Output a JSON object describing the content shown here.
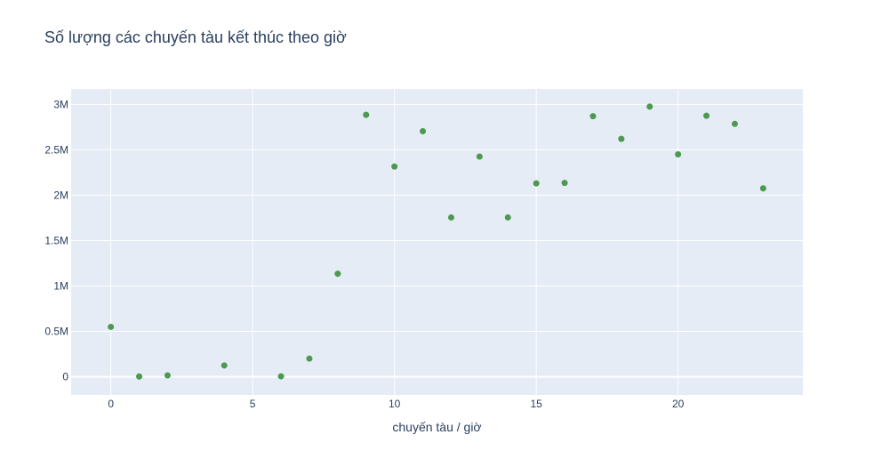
{
  "chart_data": {
    "type": "scatter",
    "title": "Số lượng các chuyến tàu kết thúc theo giờ",
    "xlabel": "chuyến tàu / giờ",
    "ylabel": "",
    "xlim": [
      -1.4,
      24.4
    ],
    "ylim": [
      -200000,
      3170000
    ],
    "x_ticks": [
      0,
      5,
      10,
      15,
      20
    ],
    "x_tick_labels": [
      "0",
      "5",
      "10",
      "15",
      "20"
    ],
    "y_ticks": [
      0,
      500000,
      1000000,
      1500000,
      2000000,
      2500000,
      3000000
    ],
    "y_tick_labels": [
      "0",
      "0.5M",
      "1M",
      "1.5M",
      "2M",
      "2.5M",
      "3M"
    ],
    "grid": true,
    "colors": {
      "marker": "#4c9a4f",
      "plot_bg": "#e5ecf6",
      "grid": "#ffffff",
      "text": "#2a3f5f"
    },
    "series": [
      {
        "x": [
          0,
          1,
          2,
          4,
          6,
          7,
          8,
          9,
          10,
          11,
          12,
          13,
          14,
          15,
          16,
          17,
          18,
          19,
          20,
          21,
          22,
          23
        ],
        "y": [
          550000,
          3000,
          15000,
          125000,
          5000,
          200000,
          1135000,
          2885000,
          2315000,
          2705000,
          1755000,
          2425000,
          1755000,
          2130000,
          2135000,
          2870000,
          2620000,
          2975000,
          2450000,
          2875000,
          2785000,
          2075000
        ]
      }
    ]
  }
}
